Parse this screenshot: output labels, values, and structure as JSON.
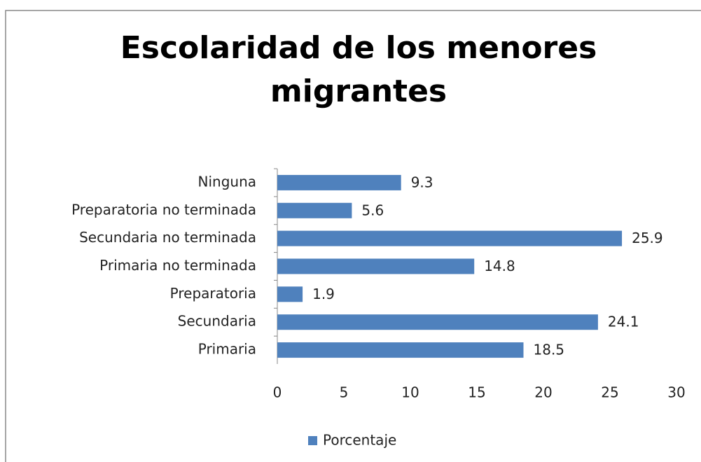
{
  "chart_data": {
    "type": "bar",
    "orientation": "horizontal",
    "title": "Escolaridad de los menores migrantes",
    "categories": [
      "Ninguna",
      "Preparatoria no terminada",
      "Secundaria no terminada",
      "Primaria no terminada",
      "Preparatoria",
      "Secundaria",
      "Primaria"
    ],
    "series": [
      {
        "name": "Porcentaje",
        "color": "#4f81bd",
        "values": [
          9.3,
          5.6,
          25.9,
          14.8,
          1.9,
          24.1,
          18.5
        ]
      }
    ],
    "xlim": [
      0,
      30
    ],
    "xticks": [
      0,
      5,
      10,
      15,
      20,
      25,
      30
    ],
    "grid": false,
    "legend": "bottom"
  }
}
